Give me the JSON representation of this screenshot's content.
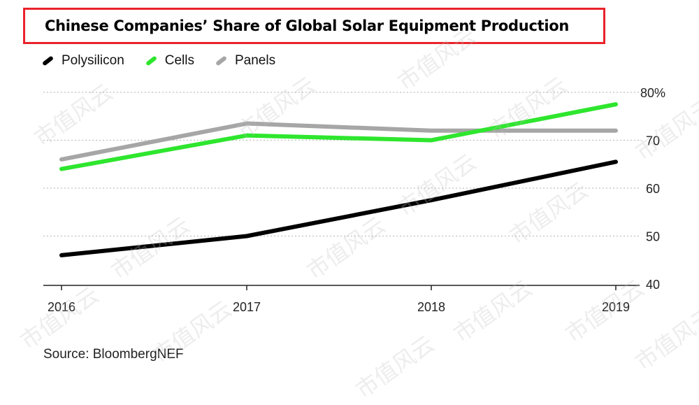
{
  "chart_data": {
    "type": "line",
    "title": "Chinese Companies’ Share of Global Solar Equipment Production",
    "x": [
      "2016",
      "2017",
      "2018",
      "2019"
    ],
    "series": [
      {
        "name": "Polysilicon",
        "color": "#000000",
        "values": [
          46,
          50,
          57.5,
          65.5
        ]
      },
      {
        "name": "Cells",
        "color": "#2ee62e",
        "values": [
          64,
          71,
          70,
          77.5
        ]
      },
      {
        "name": "Panels",
        "color": "#a6a6a6",
        "values": [
          66,
          73.5,
          72,
          72
        ]
      }
    ],
    "ylim": [
      40,
      80
    ],
    "y_ticks": [
      40,
      50,
      60,
      70,
      80
    ],
    "y_tick_labels": [
      "40",
      "50",
      "60",
      "70",
      "80%"
    ],
    "xlabel": "",
    "ylabel": "",
    "grid": true
  },
  "source": "Source: BloombergNEF",
  "watermark_text": "市值风云",
  "colors": {
    "title_border": "#e8232a",
    "grid": "#bfbfbf",
    "axis": "#222222"
  }
}
